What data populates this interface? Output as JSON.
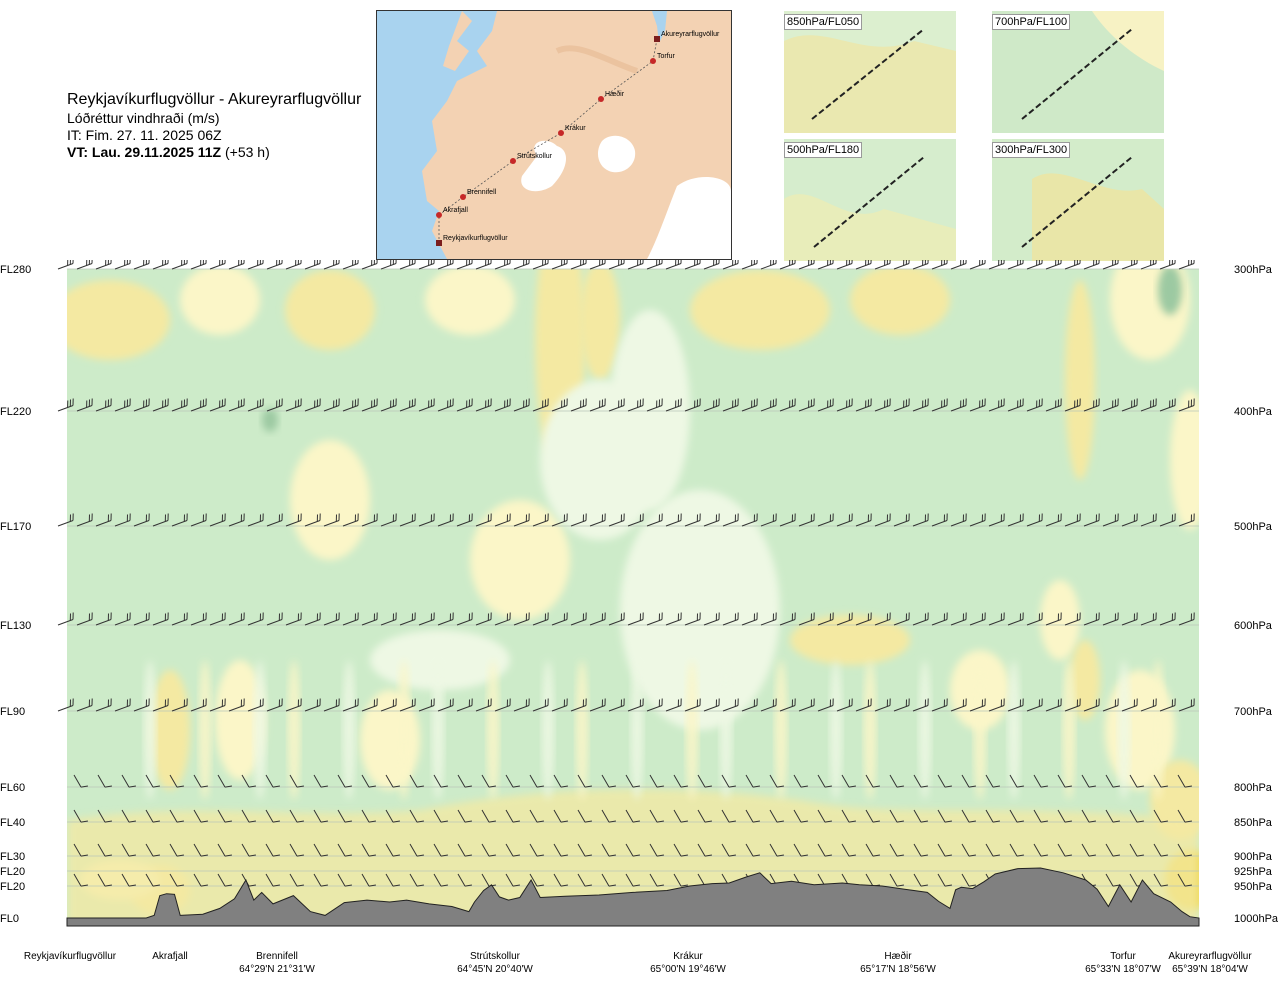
{
  "title": {
    "route": "Reykjavíkurflugvöllur - Akureyrarflugvöllur",
    "parameter": "Lóðréttur vindhraði (m/s)",
    "issue_time": "IT: Fim. 27. 11. 2025 06Z",
    "valid_time_bold": "VT: Lau. 29.11.2025 11Z",
    "lead_time": "(+53 h)"
  },
  "map": {
    "waypoints": [
      {
        "name": "Akureyrarflugvöllur"
      },
      {
        "name": "Torfur"
      },
      {
        "name": "Hæðir"
      },
      {
        "name": "Krákur"
      },
      {
        "name": "Strútskollur"
      },
      {
        "name": "Brennifell"
      },
      {
        "name": "Akrafjall"
      },
      {
        "name": "Reykjavíkurflugvöllur"
      }
    ],
    "land_color": "#f3d2b3",
    "water_color": "#a9d3ef",
    "glacier_color": "#ffffff",
    "route_color": "#c62828"
  },
  "mini_maps": [
    {
      "label": "850hPa/FL050"
    },
    {
      "label": "700hPa/FL100"
    },
    {
      "label": "500hPa/FL180"
    },
    {
      "label": "300hPa/FL300"
    }
  ],
  "chart_data": {
    "type": "heatmap",
    "fill_colors": {
      "background": "#ffffff",
      "light_green": "#eef8e4",
      "green": "#cdebc9",
      "dark_green": "#9cc9a2",
      "light_yellow": "#fbf6c8",
      "yellow": "#f4e9a2",
      "strong_yellow": "#ecd64a",
      "terrain": "#808080",
      "barb": "#333333"
    },
    "levels": [
      {
        "fl": "FL280",
        "hpa": "300hPa",
        "p": 300
      },
      {
        "fl": "FL220",
        "hpa": "400hPa",
        "p": 400
      },
      {
        "fl": "FL170",
        "hpa": "500hPa",
        "p": 500
      },
      {
        "fl": "FL130",
        "hpa": "600hPa",
        "p": 600
      },
      {
        "fl": "FL90",
        "hpa": "700hPa",
        "p": 700
      },
      {
        "fl": "FL60",
        "hpa": "800hPa",
        "p": 800
      },
      {
        "fl": "FL40",
        "hpa": "850hPa",
        "p": 850
      },
      {
        "fl": "FL30",
        "hpa": "900hPa",
        "p": 900
      },
      {
        "fl": "FL20",
        "hpa": "925hPa",
        "p": 925
      },
      {
        "fl": "FL20",
        "hpa": "950hPa",
        "p": 950
      },
      {
        "fl": "FL0",
        "hpa": "1000hPa",
        "p": 1000
      }
    ],
    "stations": [
      {
        "name": "Reykjavíkurflugvöllur",
        "coord": "",
        "dist": 0
      },
      {
        "name": "Akrafjall",
        "coord": "",
        "dist": 0.09
      },
      {
        "name": "Brennifell",
        "coord": "64°29'N 21°31'W",
        "dist": 0.19
      },
      {
        "name": "Strútskollur",
        "coord": "64°45'N 20°40'W",
        "dist": 0.36
      },
      {
        "name": "Krákur",
        "coord": "65°00'N 19°46'W",
        "dist": 0.55
      },
      {
        "name": "Hæðir",
        "coord": "65°17'N 18°56'W",
        "dist": 0.72
      },
      {
        "name": "Torfur",
        "coord": "65°33'N 18°07'W",
        "dist": 0.92
      },
      {
        "name": "Akureyrarflugvöllur",
        "coord": "65°39'N 18°04'W",
        "dist": 1.0
      }
    ],
    "terrain_profile": [
      [
        0,
        1000
      ],
      [
        0.07,
        1000
      ],
      [
        0.077,
        996
      ],
      [
        0.082,
        965
      ],
      [
        0.088,
        962
      ],
      [
        0.095,
        963
      ],
      [
        0.1,
        996
      ],
      [
        0.12,
        994
      ],
      [
        0.135,
        985
      ],
      [
        0.148,
        970
      ],
      [
        0.158,
        940
      ],
      [
        0.165,
        972
      ],
      [
        0.172,
        960
      ],
      [
        0.182,
        978
      ],
      [
        0.2,
        965
      ],
      [
        0.215,
        990
      ],
      [
        0.228,
        996
      ],
      [
        0.245,
        976
      ],
      [
        0.265,
        972
      ],
      [
        0.285,
        975
      ],
      [
        0.3,
        972
      ],
      [
        0.32,
        978
      ],
      [
        0.34,
        982
      ],
      [
        0.355,
        990
      ],
      [
        0.36,
        975
      ],
      [
        0.368,
        957
      ],
      [
        0.375,
        948
      ],
      [
        0.382,
        967
      ],
      [
        0.39,
        972
      ],
      [
        0.4,
        968
      ],
      [
        0.41,
        940
      ],
      [
        0.418,
        968
      ],
      [
        0.44,
        966
      ],
      [
        0.47,
        964
      ],
      [
        0.5,
        960
      ],
      [
        0.53,
        957
      ],
      [
        0.55,
        950
      ],
      [
        0.57,
        946
      ],
      [
        0.585,
        945
      ],
      [
        0.6,
        935
      ],
      [
        0.612,
        928
      ],
      [
        0.622,
        946
      ],
      [
        0.64,
        942
      ],
      [
        0.66,
        948
      ],
      [
        0.685,
        945
      ],
      [
        0.7,
        948
      ],
      [
        0.72,
        950
      ],
      [
        0.74,
        955
      ],
      [
        0.76,
        960
      ],
      [
        0.77,
        974
      ],
      [
        0.78,
        985
      ],
      [
        0.785,
        956
      ],
      [
        0.79,
        952
      ],
      [
        0.8,
        954
      ],
      [
        0.81,
        943
      ],
      [
        0.82,
        930
      ],
      [
        0.84,
        921
      ],
      [
        0.86,
        920
      ],
      [
        0.88,
        928
      ],
      [
        0.9,
        940
      ],
      [
        0.91,
        955
      ],
      [
        0.92,
        982
      ],
      [
        0.93,
        948
      ],
      [
        0.94,
        975
      ],
      [
        0.95,
        940
      ],
      [
        0.96,
        962
      ],
      [
        0.975,
        975
      ],
      [
        0.985,
        990
      ],
      [
        0.992,
        998
      ],
      [
        1,
        1000
      ]
    ]
  }
}
